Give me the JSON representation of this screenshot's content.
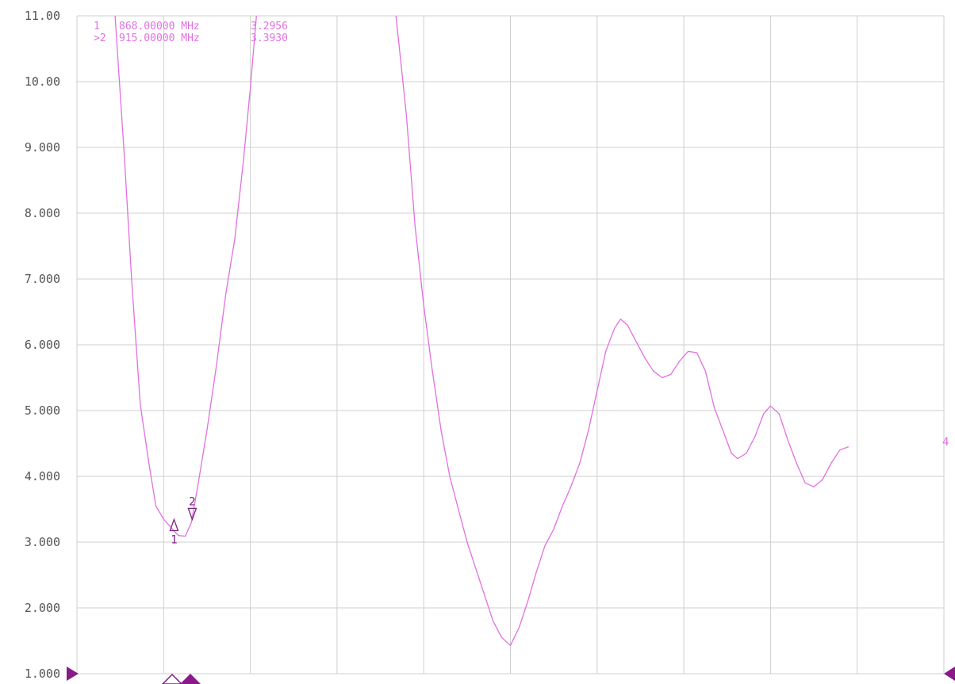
{
  "colors": {
    "trace": "#e070e0",
    "marker_readout": "#e070e0",
    "marker_symbol": "#7a2080",
    "grid": "#cfcfcf",
    "axis_text": "#555555",
    "side_arrow": "#8a1a8a",
    "background": "#ffffff"
  },
  "chart_data": {
    "type": "line",
    "title": "",
    "xlabel": "",
    "ylabel": "",
    "ylim": [
      1,
      11
    ],
    "xlim": [
      0,
      10
    ],
    "grid": true,
    "y_ticks": [
      "1.000",
      "2.000",
      "3.000",
      "4.000",
      "5.000",
      "6.000",
      "7.000",
      "8.000",
      "9.000",
      "10.00",
      "11.00"
    ],
    "series": [
      {
        "values": [
          {
            "x": 0.44,
            "y": 11.0
          },
          {
            "x": 0.55,
            "y": 8.8
          },
          {
            "x": 0.63,
            "y": 7.0
          },
          {
            "x": 0.73,
            "y": 5.1
          },
          {
            "x": 0.83,
            "y": 4.2
          },
          {
            "x": 0.91,
            "y": 3.55
          },
          {
            "x": 1.0,
            "y": 3.35
          },
          {
            "x": 1.1,
            "y": 3.2
          },
          {
            "x": 1.17,
            "y": 3.1
          },
          {
            "x": 1.25,
            "y": 3.09
          },
          {
            "x": 1.32,
            "y": 3.3
          },
          {
            "x": 1.4,
            "y": 3.9
          },
          {
            "x": 1.5,
            "y": 4.7
          },
          {
            "x": 1.6,
            "y": 5.6
          },
          {
            "x": 1.72,
            "y": 6.8
          },
          {
            "x": 1.82,
            "y": 7.6
          },
          {
            "x": 1.92,
            "y": 8.8
          },
          {
            "x": 2.0,
            "y": 9.9
          },
          {
            "x": 2.07,
            "y": 11.0
          }
        ]
      },
      {
        "values": [
          {
            "x": 3.68,
            "y": 11.0
          },
          {
            "x": 3.8,
            "y": 9.5
          },
          {
            "x": 3.9,
            "y": 7.8
          },
          {
            "x": 4.0,
            "y": 6.6
          },
          {
            "x": 4.1,
            "y": 5.6
          },
          {
            "x": 4.2,
            "y": 4.7
          },
          {
            "x": 4.3,
            "y": 4.0
          },
          {
            "x": 4.4,
            "y": 3.5
          },
          {
            "x": 4.5,
            "y": 3.0
          },
          {
            "x": 4.6,
            "y": 2.6
          },
          {
            "x": 4.7,
            "y": 2.2
          },
          {
            "x": 4.8,
            "y": 1.8
          },
          {
            "x": 4.9,
            "y": 1.55
          },
          {
            "x": 5.0,
            "y": 1.43
          },
          {
            "x": 5.1,
            "y": 1.7
          },
          {
            "x": 5.2,
            "y": 2.1
          },
          {
            "x": 5.3,
            "y": 2.55
          },
          {
            "x": 5.4,
            "y": 2.95
          },
          {
            "x": 5.5,
            "y": 3.2
          },
          {
            "x": 5.6,
            "y": 3.55
          },
          {
            "x": 5.7,
            "y": 3.85
          },
          {
            "x": 5.8,
            "y": 4.2
          },
          {
            "x": 5.9,
            "y": 4.7
          },
          {
            "x": 6.0,
            "y": 5.3
          },
          {
            "x": 6.1,
            "y": 5.9
          },
          {
            "x": 6.2,
            "y": 6.25
          },
          {
            "x": 6.27,
            "y": 6.39
          },
          {
            "x": 6.35,
            "y": 6.3
          },
          {
            "x": 6.45,
            "y": 6.05
          },
          {
            "x": 6.55,
            "y": 5.8
          },
          {
            "x": 6.65,
            "y": 5.6
          },
          {
            "x": 6.75,
            "y": 5.5
          },
          {
            "x": 6.85,
            "y": 5.55
          },
          {
            "x": 6.95,
            "y": 5.75
          },
          {
            "x": 7.05,
            "y": 5.9
          },
          {
            "x": 7.15,
            "y": 5.88
          },
          {
            "x": 7.25,
            "y": 5.6
          },
          {
            "x": 7.35,
            "y": 5.05
          },
          {
            "x": 7.45,
            "y": 4.7
          },
          {
            "x": 7.55,
            "y": 4.35
          },
          {
            "x": 7.62,
            "y": 4.27
          },
          {
            "x": 7.72,
            "y": 4.35
          },
          {
            "x": 7.82,
            "y": 4.6
          },
          {
            "x": 7.92,
            "y": 4.95
          },
          {
            "x": 8.0,
            "y": 5.07
          },
          {
            "x": 8.1,
            "y": 4.95
          },
          {
            "x": 8.2,
            "y": 4.55
          },
          {
            "x": 8.3,
            "y": 4.2
          },
          {
            "x": 8.4,
            "y": 3.9
          },
          {
            "x": 8.5,
            "y": 3.84
          },
          {
            "x": 8.6,
            "y": 3.95
          },
          {
            "x": 8.7,
            "y": 4.2
          },
          {
            "x": 8.8,
            "y": 4.4
          },
          {
            "x": 8.9,
            "y": 4.45
          }
        ]
      }
    ],
    "markers": [
      {
        "label": "1",
        "x": 1.12,
        "y": 3.2956,
        "direction": "up"
      },
      {
        "label": "2",
        "x": 1.33,
        "y": 3.393,
        "direction": "down"
      }
    ],
    "trace_end_label": "4"
  },
  "marker_readout": [
    {
      "id": "1",
      "freq": "868.00000 MHz",
      "value": "3.2956"
    },
    {
      "id": ">2",
      "freq": "915.00000 MHz",
      "value": "3.3930"
    }
  ]
}
